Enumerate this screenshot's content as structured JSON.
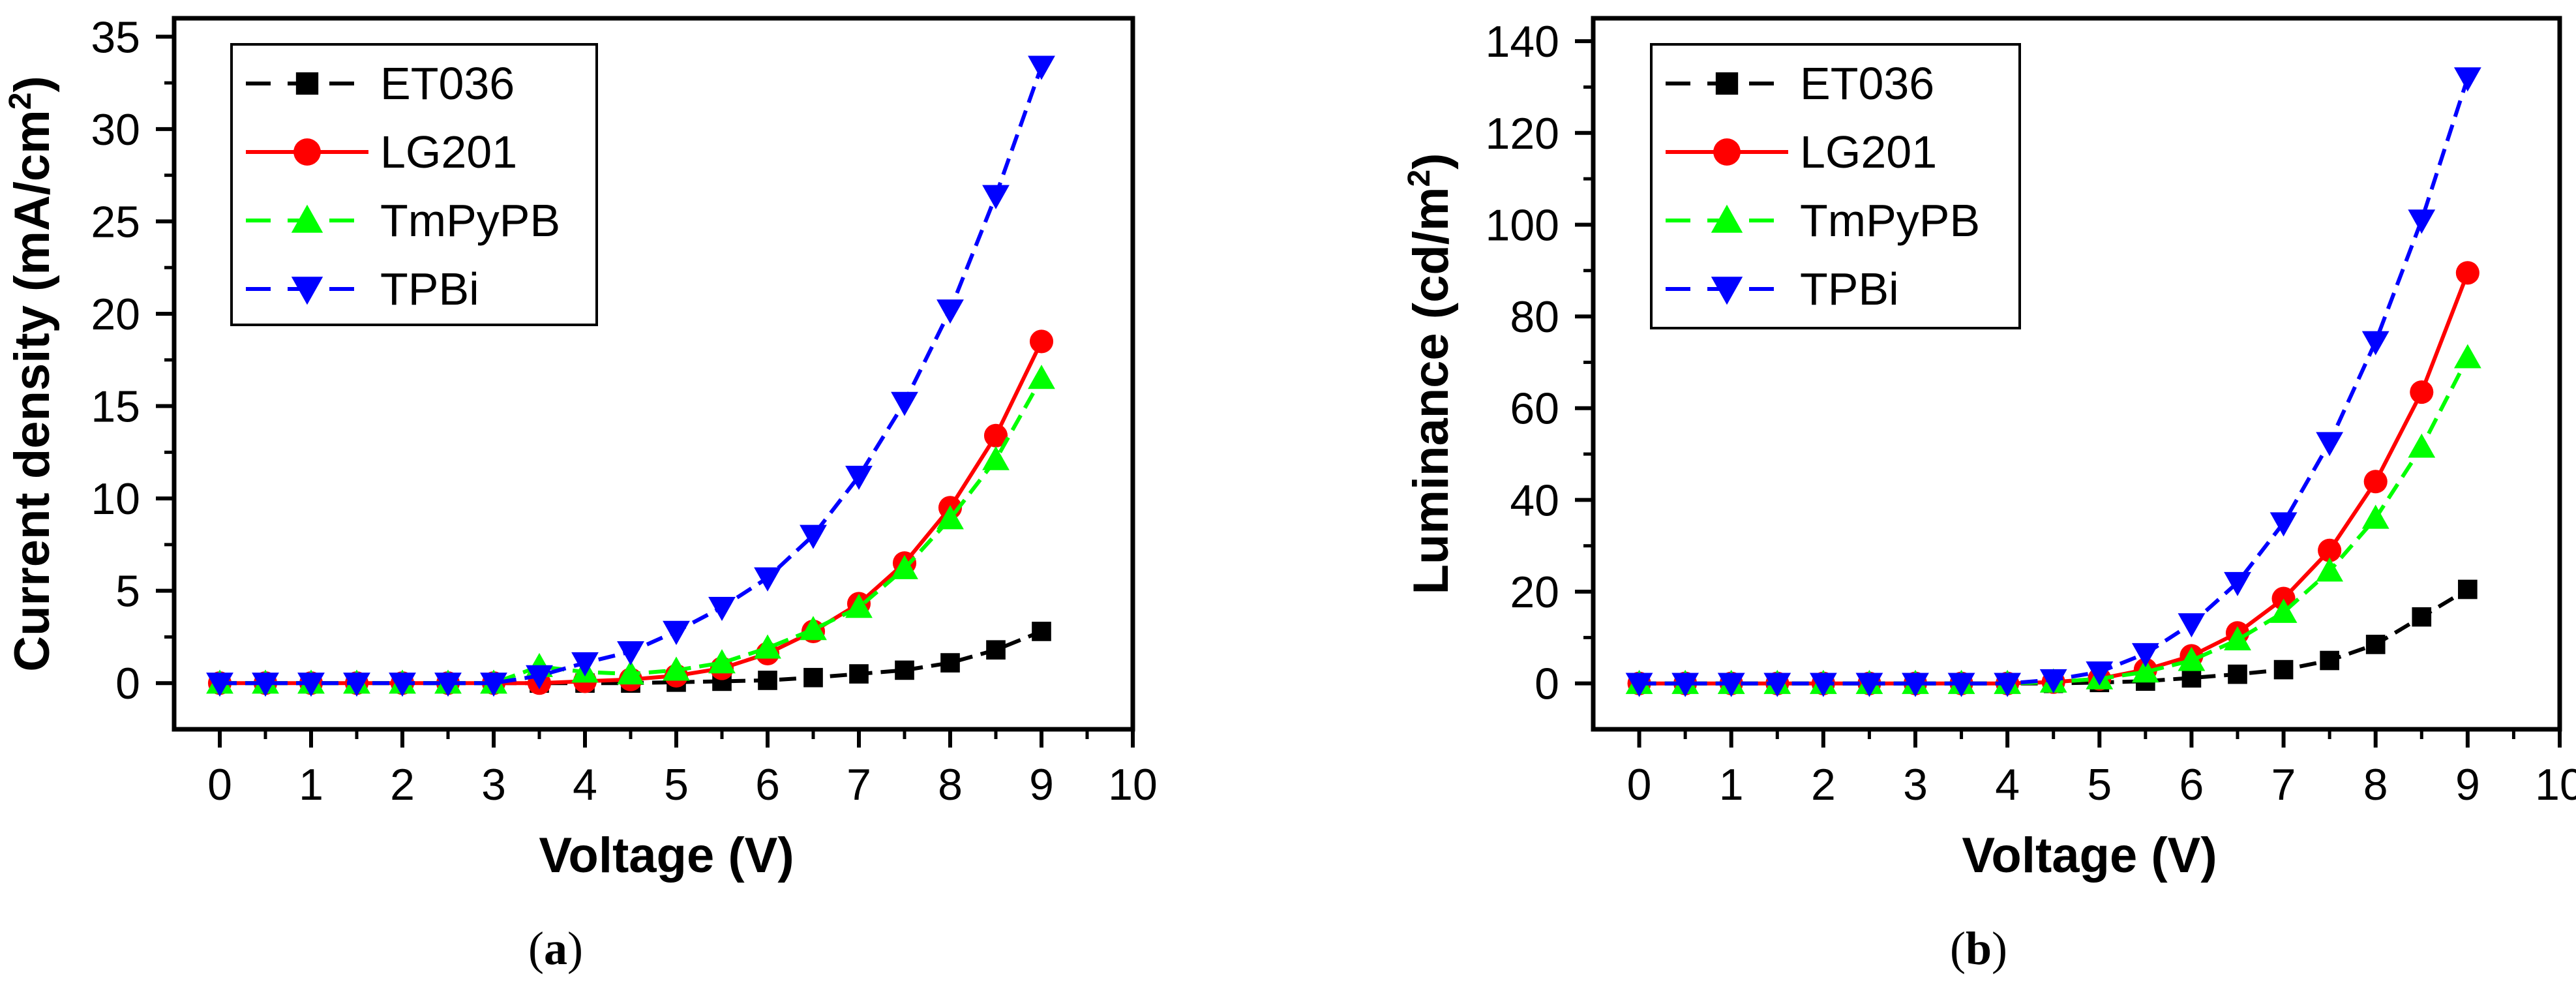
{
  "chart_data": [
    {
      "type": "line",
      "panel_label": "a",
      "title": "",
      "xlabel": "Voltage (V)",
      "ylabel_main": "Current density (mA/cm",
      "ylabel_sup": "2",
      "ylabel_close": ")",
      "xlim": [
        -0.5,
        10
      ],
      "ylim": [
        -2.5,
        36
      ],
      "xticks": [
        "0",
        "1",
        "2",
        "3",
        "4",
        "5",
        "6",
        "7",
        "8",
        "9",
        "10"
      ],
      "yticks": [
        "0",
        "5",
        "10",
        "15",
        "20",
        "25",
        "30",
        "35"
      ],
      "x": [
        0,
        0.5,
        1,
        1.5,
        2,
        2.5,
        3,
        3.5,
        4,
        4.5,
        5,
        5.5,
        6,
        6.5,
        7,
        7.5,
        8,
        8.5,
        9
      ],
      "series": [
        {
          "name": "ET036",
          "color": "#000000",
          "marker": "square",
          "dash": true,
          "values": [
            0,
            0,
            0,
            0,
            0,
            0,
            0,
            0,
            0,
            0,
            0.05,
            0.1,
            0.15,
            0.3,
            0.5,
            0.7,
            1.1,
            1.8,
            2.8
          ]
        },
        {
          "name": "LG201",
          "color": "#ff0000",
          "marker": "circle",
          "dash": false,
          "values": [
            0,
            0,
            0,
            0,
            0,
            0,
            0,
            0,
            0.1,
            0.2,
            0.4,
            0.8,
            1.6,
            2.8,
            4.3,
            6.5,
            9.5,
            13.4,
            18.5
          ]
        },
        {
          "name": "TmPyPB",
          "color": "#00ff00",
          "marker": "triangle-up",
          "dash": true,
          "values": [
            0,
            0,
            0,
            0,
            0,
            0,
            0,
            0.9,
            0.6,
            0.5,
            0.7,
            1.1,
            1.9,
            2.9,
            4.1,
            6.2,
            8.9,
            12.1,
            16.5
          ]
        },
        {
          "name": "TPBi",
          "color": "#0000ff",
          "marker": "triangle-down",
          "dash": true,
          "values": [
            0,
            0,
            0,
            0,
            0,
            0,
            0,
            0.4,
            1.1,
            1.7,
            2.8,
            4.1,
            5.7,
            8.0,
            11.2,
            15.2,
            20.2,
            26.4,
            33.4
          ]
        }
      ]
    },
    {
      "type": "line",
      "panel_label": "b",
      "title": "",
      "xlabel": "Voltage (V)",
      "ylabel_main": "Luminance (cd/m",
      "ylabel_sup": "2",
      "ylabel_close": ")",
      "xlim": [
        -0.5,
        10
      ],
      "ylim": [
        -10,
        145
      ],
      "xticks": [
        "0",
        "1",
        "2",
        "3",
        "4",
        "5",
        "6",
        "7",
        "8",
        "9",
        "10"
      ],
      "yticks": [
        "0",
        "20",
        "40",
        "60",
        "80",
        "100",
        "120",
        "140"
      ],
      "x": [
        0,
        0.5,
        1,
        1.5,
        2,
        2.5,
        3,
        3.5,
        4,
        4.5,
        5,
        5.5,
        6,
        6.5,
        7,
        7.5,
        8,
        8.5,
        9
      ],
      "series": [
        {
          "name": "ET036",
          "color": "#000000",
          "marker": "square",
          "dash": true,
          "values": [
            0,
            0,
            0,
            0,
            0,
            0,
            0,
            0,
            0,
            0,
            0.2,
            0.5,
            1.2,
            2,
            3,
            5,
            8.5,
            14.5,
            20.5
          ]
        },
        {
          "name": "LG201",
          "color": "#ff0000",
          "marker": "circle",
          "dash": false,
          "values": [
            0,
            0,
            0,
            0,
            0,
            0,
            0,
            0,
            0,
            0.3,
            1,
            3,
            6,
            11,
            18.5,
            29,
            44,
            63.5,
            89.5
          ]
        },
        {
          "name": "TmPyPB",
          "color": "#00ff00",
          "marker": "triangle-up",
          "dash": true,
          "values": [
            0,
            0,
            0,
            0,
            0,
            0,
            0,
            0,
            0,
            0.3,
            1,
            2.5,
            5,
            9.5,
            15.5,
            24.5,
            36,
            51.5,
            71
          ]
        },
        {
          "name": "TPBi",
          "color": "#0000ff",
          "marker": "triangle-down",
          "dash": true,
          "values": [
            0,
            0,
            0,
            0,
            0,
            0,
            0,
            0,
            0,
            0.8,
            2.5,
            6.5,
            13,
            22,
            35,
            52.5,
            74.5,
            101,
            132
          ]
        }
      ]
    }
  ]
}
